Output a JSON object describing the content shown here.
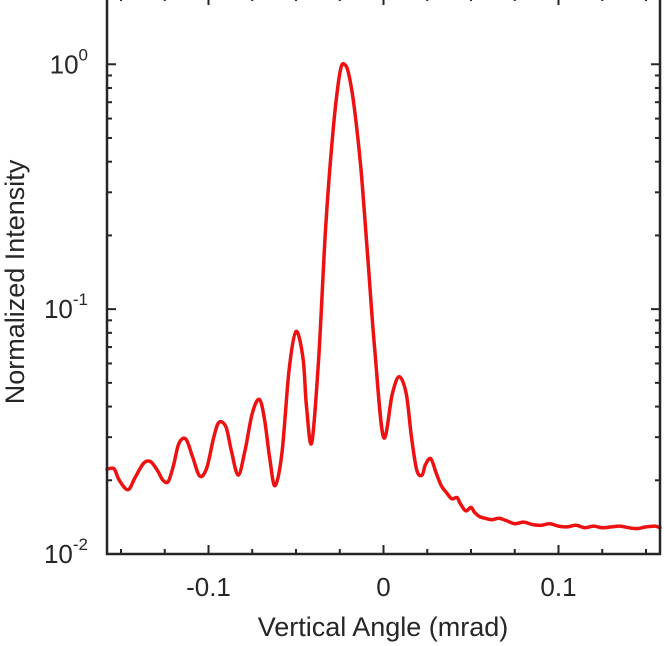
{
  "chart_data": {
    "type": "line",
    "title": "",
    "xlabel": "Vertical Angle (mrad)",
    "ylabel": "Normalized Intensity",
    "xlim": [
      -0.158,
      0.158
    ],
    "ylim": [
      0.01,
      1.9
    ],
    "yscale": "log",
    "grid": false,
    "line_color": "#ee1111",
    "axis_color": "#262626",
    "x_ticks": [
      {
        "value": -0.1,
        "label": "-0.1"
      },
      {
        "value": 0,
        "label": "0"
      },
      {
        "value": 0.1,
        "label": "0.1"
      }
    ],
    "y_ticks": [
      {
        "value": 1,
        "base": "10",
        "exp": "0"
      },
      {
        "value": 0.1,
        "base": "10",
        "exp": "-1"
      },
      {
        "value": 0.01,
        "base": "10",
        "exp": "-2"
      }
    ],
    "series": [
      {
        "name": "Normalized Intensity",
        "x": [
          -0.158,
          -0.154,
          -0.151,
          -0.146,
          -0.142,
          -0.137,
          -0.133,
          -0.129,
          -0.126,
          -0.123,
          -0.12,
          -0.117,
          -0.113,
          -0.109,
          -0.105,
          -0.101,
          -0.097,
          -0.094,
          -0.09,
          -0.087,
          -0.083,
          -0.079,
          -0.075,
          -0.071,
          -0.068,
          -0.065,
          -0.062,
          -0.058,
          -0.054,
          -0.05,
          -0.046,
          -0.044,
          -0.041,
          -0.037,
          -0.033,
          -0.029,
          -0.026,
          -0.024,
          -0.022,
          -0.02,
          -0.017,
          -0.013,
          -0.009,
          -0.005,
          0,
          0.005,
          0.009,
          0.013,
          0.016,
          0.019,
          0.022,
          0.024,
          0.027,
          0.03,
          0.033,
          0.036,
          0.039,
          0.042,
          0.044,
          0.047,
          0.05,
          0.052,
          0.055,
          0.058,
          0.062,
          0.066,
          0.07,
          0.075,
          0.08,
          0.085,
          0.09,
          0.095,
          0.1,
          0.105,
          0.11,
          0.115,
          0.12,
          0.125,
          0.13,
          0.135,
          0.14,
          0.145,
          0.15,
          0.155,
          0.158
        ],
        "y": [
          0.0222,
          0.0223,
          0.02,
          0.0183,
          0.0205,
          0.0235,
          0.0238,
          0.0218,
          0.02,
          0.0198,
          0.023,
          0.0282,
          0.0295,
          0.0248,
          0.0208,
          0.0225,
          0.03,
          0.0345,
          0.033,
          0.0265,
          0.021,
          0.0268,
          0.0375,
          0.0428,
          0.0355,
          0.0245,
          0.019,
          0.026,
          0.056,
          0.081,
          0.063,
          0.04,
          0.0285,
          0.064,
          0.22,
          0.52,
          0.82,
          0.985,
          0.995,
          0.92,
          0.69,
          0.38,
          0.162,
          0.068,
          0.03,
          0.045,
          0.053,
          0.045,
          0.03,
          0.022,
          0.021,
          0.0232,
          0.0245,
          0.0215,
          0.019,
          0.0178,
          0.0168,
          0.017,
          0.016,
          0.015,
          0.0155,
          0.0148,
          0.0142,
          0.014,
          0.0138,
          0.014,
          0.0137,
          0.0133,
          0.0135,
          0.0132,
          0.0131,
          0.0133,
          0.013,
          0.0129,
          0.0131,
          0.0128,
          0.013,
          0.0128,
          0.0129,
          0.013,
          0.0128,
          0.0127,
          0.0129,
          0.013,
          0.0128
        ]
      }
    ]
  }
}
